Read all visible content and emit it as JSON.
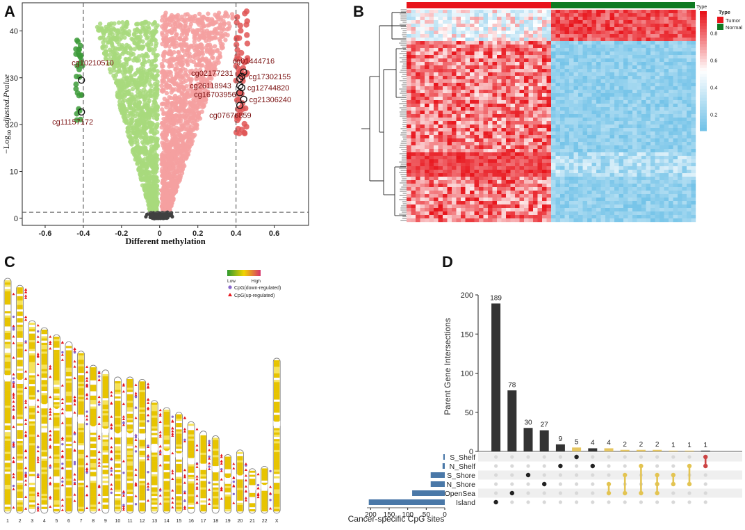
{
  "panels": {
    "a": "A",
    "b": "B",
    "c": "C",
    "d": "D"
  },
  "chart_data": [
    {
      "type": "scatter",
      "panel": "A",
      "title": "",
      "xlabel": "Different methylation",
      "ylabel_prefix": "−Log",
      "ylabel_sub": "10",
      "ylabel_suffix": " adjusted.Pvalue",
      "xlim": [
        -0.72,
        0.78
      ],
      "ylim": [
        -1.5,
        46
      ],
      "xticks": [
        -0.6,
        -0.4,
        -0.2,
        0,
        0.2,
        0.4,
        0.6
      ],
      "xtick_labels": [
        "-0.6",
        "-0.4",
        "-0.2",
        "0",
        "0.2",
        "0.4",
        "0.6"
      ],
      "yticks": [
        0,
        10,
        20,
        30,
        40
      ],
      "ytick_labels": [
        "0",
        "10",
        "20",
        "30",
        "40"
      ],
      "thresholds": {
        "x": [
          -0.4,
          0.4
        ],
        "y": 1.3
      },
      "colors": {
        "down_sig": "#3d9b3a",
        "down": "#a8d97d",
        "up": "#f4a0a0",
        "up_sig": "#e05555",
        "ns": "#404040"
      },
      "labeled_points": [
        {
          "label": "cg10210510",
          "x": -0.41,
          "y": 29.5
        },
        {
          "label": "cg11157172",
          "x": -0.41,
          "y": 22.7
        },
        {
          "label": "cg01444716",
          "x": 0.44,
          "y": 31.2
        },
        {
          "label": "cg02177231",
          "x": 0.42,
          "y": 29.8
        },
        {
          "label": "cg17302155",
          "x": 0.43,
          "y": 30.3
        },
        {
          "label": "cg26118943",
          "x": 0.42,
          "y": 28.3
        },
        {
          "label": "cg12744820",
          "x": 0.43,
          "y": 27.9
        },
        {
          "label": "cg16703956",
          "x": 0.42,
          "y": 26.8
        },
        {
          "label": "cg21306240",
          "x": 0.44,
          "y": 25.4
        },
        {
          "label": "cg07676859",
          "x": 0.42,
          "y": 24.1
        }
      ]
    },
    {
      "type": "heatmap",
      "panel": "B",
      "annotation_title": "Type",
      "groups": [
        {
          "name": "Tumor",
          "color": "#e8141b"
        },
        {
          "name": "Normal",
          "color": "#0f7a22"
        }
      ],
      "colorbar": {
        "ticks": [
          0.8,
          0.6,
          0.4,
          0.2
        ],
        "tick_labels": [
          "0.8",
          "0.6",
          "0.4",
          "0.2"
        ],
        "low_color": "#74c3e8",
        "mid_color": "#ffffff",
        "high_color": "#e8141b"
      }
    },
    {
      "type": "ideogram",
      "panel": "C",
      "legend": {
        "low": "Low",
        "high": "High",
        "down": "CpG(down-regulated)",
        "up": "CpG(up-regulated)"
      },
      "chromosomes": [
        "1",
        "2",
        "3",
        "4",
        "5",
        "6",
        "7",
        "8",
        "9",
        "10",
        "11",
        "12",
        "13",
        "14",
        "15",
        "16",
        "17",
        "18",
        "19",
        "20",
        "21",
        "22",
        "X"
      ],
      "relative_lengths": [
        1.0,
        0.97,
        0.82,
        0.79,
        0.76,
        0.73,
        0.69,
        0.63,
        0.61,
        0.58,
        0.58,
        0.57,
        0.48,
        0.45,
        0.43,
        0.39,
        0.35,
        0.33,
        0.25,
        0.27,
        0.19,
        0.2,
        0.66
      ],
      "colors": {
        "low": "#2e9a2e",
        "mid": "#f1d400",
        "high": "#d6336c",
        "down": "#8866cc",
        "up": "#e8141b"
      }
    },
    {
      "type": "bar",
      "panel": "D",
      "ylabel": "Parent Gene Intersections",
      "xlabel_sets": "Cancer-specific CpG sites",
      "ylim": [
        0,
        200
      ],
      "yticks": [
        0,
        50,
        100,
        150,
        200
      ],
      "ytick_labels": [
        "0",
        "50",
        "100",
        "150",
        "200"
      ],
      "values": [
        189,
        78,
        30,
        27,
        9,
        5,
        4,
        4,
        2,
        2,
        2,
        1,
        1,
        1
      ],
      "bar_labels": [
        "189",
        "78",
        "30",
        "27",
        "9",
        "5",
        "4",
        "4",
        "2",
        "2",
        "2",
        "1",
        "1",
        "1"
      ],
      "bar_colors": [
        "#333333",
        "#333333",
        "#333333",
        "#333333",
        "#333333",
        "#e6c660",
        "#333333",
        "#e6c660",
        "#e6c660",
        "#e6c660",
        "#e6c660",
        "#e6c660",
        "#e6c660",
        "#333333"
      ],
      "sets": [
        "S_Shelf",
        "N_Shelf",
        "S_Shore",
        "N_Shore",
        "OpenSea",
        "Island"
      ],
      "set_sizes": [
        4,
        6,
        38,
        38,
        88,
        205
      ],
      "set_axis_ticks": [
        200,
        150,
        100,
        50,
        0
      ],
      "set_axis_labels": [
        "200",
        "150",
        "100",
        "50",
        "0"
      ],
      "matrix": [
        [
          5
        ],
        [
          4
        ],
        [
          2
        ],
        [
          3
        ],
        [
          1
        ],
        [
          0
        ],
        [
          1
        ],
        [
          4,
          3
        ],
        [
          4,
          2
        ],
        [
          4,
          1
        ],
        [
          4,
          3,
          2
        ],
        [
          3,
          2
        ],
        [
          3,
          1
        ],
        [
          0,
          1
        ]
      ],
      "matrix_colors": {
        "single": "#222222",
        "multi": "#e3c452",
        "last": "#cc4444",
        "empty": "#d8d8d8"
      }
    }
  ]
}
